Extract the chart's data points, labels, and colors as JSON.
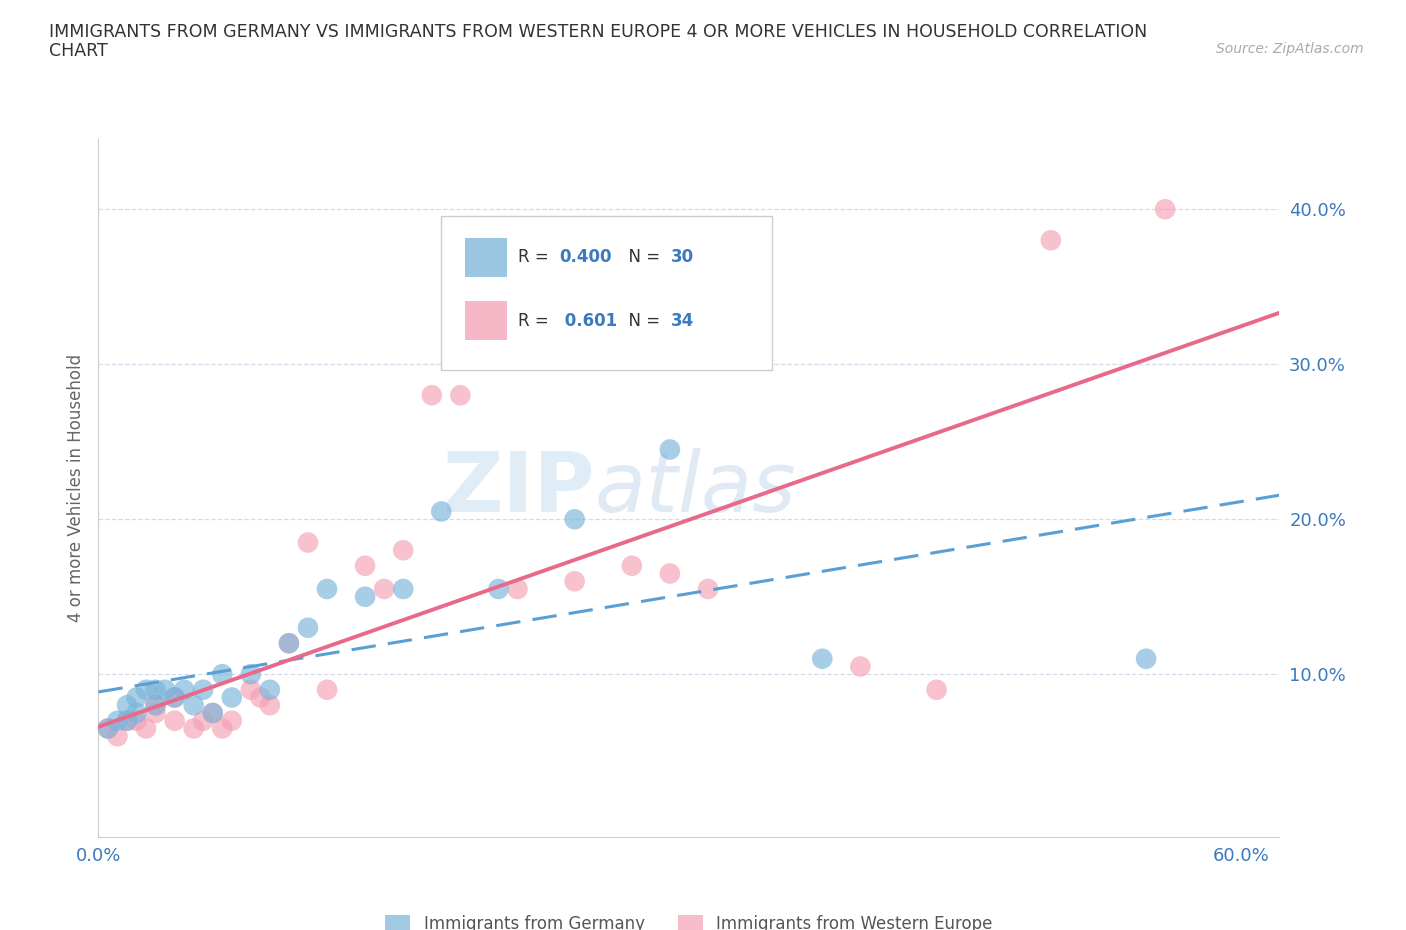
{
  "title_line1": "IMMIGRANTS FROM GERMANY VS IMMIGRANTS FROM WESTERN EUROPE 4 OR MORE VEHICLES IN HOUSEHOLD CORRELATION",
  "title_line2": "CHART",
  "source": "Source: ZipAtlas.com",
  "ylabel": "4 or more Vehicles in Household",
  "xlim": [
    0.0,
    0.62
  ],
  "ylim": [
    -0.005,
    0.445
  ],
  "xticks": [
    0.0,
    0.1,
    0.2,
    0.3,
    0.4,
    0.5,
    0.6
  ],
  "xticklabels": [
    "0.0%",
    "",
    "",
    "",
    "",
    "",
    "60.0%"
  ],
  "yticks": [
    0.1,
    0.2,
    0.3,
    0.4
  ],
  "yticklabels": [
    "10.0%",
    "20.0%",
    "30.0%",
    "40.0%"
  ],
  "germany_color": "#7ab3d9",
  "western_europe_color": "#f4a0b5",
  "germany_R": 0.4,
  "germany_N": 30,
  "western_R": 0.601,
  "western_N": 34,
  "germany_scatter_x": [
    0.005,
    0.01,
    0.015,
    0.015,
    0.02,
    0.02,
    0.025,
    0.03,
    0.03,
    0.035,
    0.04,
    0.045,
    0.05,
    0.055,
    0.06,
    0.065,
    0.07,
    0.08,
    0.09,
    0.1,
    0.11,
    0.12,
    0.14,
    0.16,
    0.18,
    0.21,
    0.25,
    0.3,
    0.38,
    0.55
  ],
  "germany_scatter_y": [
    0.065,
    0.07,
    0.07,
    0.08,
    0.075,
    0.085,
    0.09,
    0.08,
    0.09,
    0.09,
    0.085,
    0.09,
    0.08,
    0.09,
    0.075,
    0.1,
    0.085,
    0.1,
    0.09,
    0.12,
    0.13,
    0.155,
    0.15,
    0.155,
    0.205,
    0.155,
    0.2,
    0.245,
    0.11,
    0.11
  ],
  "western_scatter_x": [
    0.005,
    0.01,
    0.015,
    0.02,
    0.025,
    0.03,
    0.03,
    0.04,
    0.04,
    0.05,
    0.055,
    0.06,
    0.065,
    0.07,
    0.08,
    0.085,
    0.09,
    0.1,
    0.11,
    0.12,
    0.14,
    0.15,
    0.16,
    0.175,
    0.19,
    0.22,
    0.25,
    0.28,
    0.3,
    0.32,
    0.4,
    0.44,
    0.5,
    0.56
  ],
  "western_scatter_y": [
    0.065,
    0.06,
    0.07,
    0.07,
    0.065,
    0.08,
    0.075,
    0.085,
    0.07,
    0.065,
    0.07,
    0.075,
    0.065,
    0.07,
    0.09,
    0.085,
    0.08,
    0.12,
    0.185,
    0.09,
    0.17,
    0.155,
    0.18,
    0.28,
    0.28,
    0.155,
    0.16,
    0.17,
    0.165,
    0.155,
    0.105,
    0.09,
    0.38,
    0.4
  ],
  "watermark_zip": "ZIP",
  "watermark_atlas": "atlas",
  "legend_color": "#3a7abf",
  "background_color": "#ffffff",
  "grid_color": "#d0d8e8",
  "tick_color": "#3a7abf",
  "spine_color": "#cccccc"
}
